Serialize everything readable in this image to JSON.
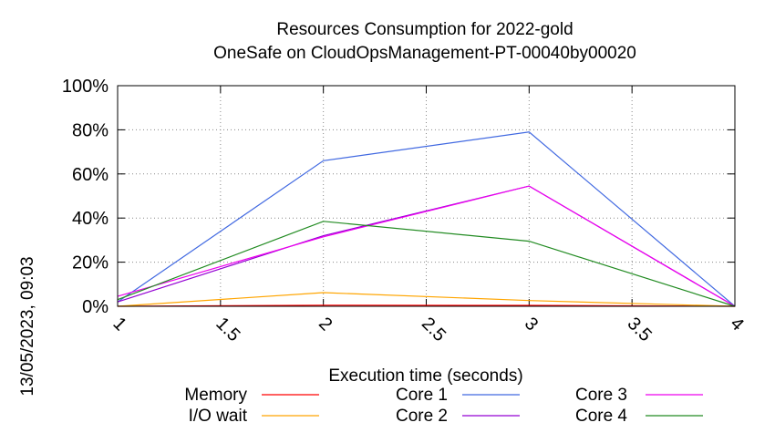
{
  "chart_data": {
    "type": "line",
    "title": "Resources Consumption for 2022-gold",
    "subtitle": "OneSafe on CloudOpsManagement-PT-00040by00020",
    "xlabel": "Execution time (seconds)",
    "ylabel": "",
    "xlim": [
      1,
      4
    ],
    "ylim": [
      0,
      100
    ],
    "x_ticks": [
      "1",
      "1.5",
      "2",
      "2.5",
      "3",
      "3.5",
      "4"
    ],
    "y_ticks": [
      "0%",
      "20%",
      "40%",
      "60%",
      "80%",
      "100%"
    ],
    "grid": true,
    "legend_position": "bottom",
    "series": [
      {
        "name": "Memory",
        "color": "#ff0000",
        "x": [
          1,
          2,
          3,
          4
        ],
        "values": [
          0,
          0.5,
          0.4,
          0
        ]
      },
      {
        "name": "I/O wait",
        "color": "#ffa500",
        "x": [
          1,
          2,
          3,
          4
        ],
        "values": [
          0,
          6.2,
          2.6,
          0
        ]
      },
      {
        "name": "Core 1",
        "color": "#4169e1",
        "x": [
          1,
          2,
          3,
          4
        ],
        "values": [
          2,
          66,
          79,
          0
        ]
      },
      {
        "name": "Core 2",
        "color": "#9400d3",
        "x": [
          1,
          2,
          3,
          4
        ],
        "values": [
          2,
          32,
          54.5,
          0
        ]
      },
      {
        "name": "Core 3",
        "color": "#ee00ee",
        "x": [
          1,
          2,
          3,
          4
        ],
        "values": [
          4.5,
          31.5,
          54.5,
          0
        ]
      },
      {
        "name": "Core 4",
        "color": "#228b22",
        "x": [
          1,
          2,
          3,
          4
        ],
        "values": [
          3,
          38.5,
          29.5,
          0
        ]
      }
    ]
  },
  "timestamp": "13/05/2023, 09:03"
}
